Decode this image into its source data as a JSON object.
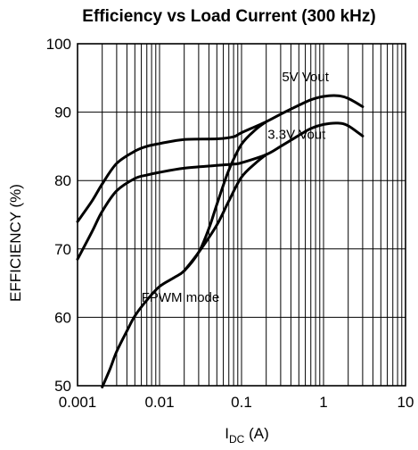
{
  "chart_data": {
    "type": "line",
    "title": "Efficiency vs Load Current (300 kHz)",
    "ylabel": "EFFICIENCY (%)",
    "xlabel_main": "I",
    "xlabel_sub": "DC",
    "xlabel_unit": " (A)",
    "x_scale": "log",
    "xlim": [
      0.001,
      10
    ],
    "ylim": [
      50,
      100
    ],
    "grid": true,
    "x_ticks": [
      {
        "value": 0.001,
        "label": "0.001"
      },
      {
        "value": 0.01,
        "label": "0.01"
      },
      {
        "value": 0.1,
        "label": "0.1"
      },
      {
        "value": 1,
        "label": "1"
      },
      {
        "value": 10,
        "label": "10"
      }
    ],
    "y_ticks": [
      {
        "value": 50,
        "label": "50"
      },
      {
        "value": 60,
        "label": "60"
      },
      {
        "value": 70,
        "label": "70"
      },
      {
        "value": 80,
        "label": "80"
      },
      {
        "value": 90,
        "label": "90"
      },
      {
        "value": 100,
        "label": "100"
      }
    ],
    "series": [
      {
        "x": [
          0.001,
          0.0015,
          0.002,
          0.003,
          0.005,
          0.007,
          0.01,
          0.02,
          0.05,
          0.08,
          0.1,
          0.2,
          0.3,
          0.5,
          0.7,
          1,
          1.5,
          2,
          3
        ],
        "y": [
          74,
          77,
          79.5,
          82.5,
          84.3,
          85,
          85.4,
          86,
          86.1,
          86.4,
          87,
          88.6,
          89.7,
          91,
          91.8,
          92.3,
          92.4,
          92,
          90.8
        ]
      },
      {
        "x": [
          0.001,
          0.0015,
          0.002,
          0.003,
          0.005,
          0.007,
          0.01,
          0.02,
          0.05,
          0.08,
          0.1,
          0.2,
          0.3,
          0.5,
          0.7,
          1,
          1.5,
          2,
          3
        ],
        "y": [
          68.5,
          72.5,
          75.5,
          78.5,
          80.3,
          80.8,
          81.2,
          81.8,
          82.2,
          82.4,
          82.6,
          83.8,
          85,
          86.6,
          87.6,
          88.2,
          88.4,
          88,
          86.5
        ]
      },
      {
        "x": [
          0.002,
          0.0025,
          0.003,
          0.004,
          0.005,
          0.007,
          0.01,
          0.015,
          0.02,
          0.03,
          0.04,
          0.05,
          0.07,
          0.1,
          0.15,
          0.2
        ],
        "y": [
          49.8,
          52.5,
          55,
          58,
          60.2,
          62.5,
          64.5,
          65.8,
          66.8,
          69.5,
          73,
          76.5,
          81.5,
          85.3,
          87.5,
          88.6
        ]
      },
      {
        "x": [
          0.02,
          0.03,
          0.05,
          0.07,
          0.1,
          0.15,
          0.2
        ],
        "y": [
          66.8,
          69.5,
          73.5,
          77,
          80.5,
          82.6,
          83.8
        ]
      }
    ],
    "annotations": [
      {
        "text": "5V Vout",
        "x": 0.6,
        "y": 94.5
      },
      {
        "text": "3.3V Vout",
        "x": 0.47,
        "y": 86.1
      },
      {
        "text": "FPWM mode",
        "x": 0.018,
        "y": 62.3
      }
    ]
  }
}
